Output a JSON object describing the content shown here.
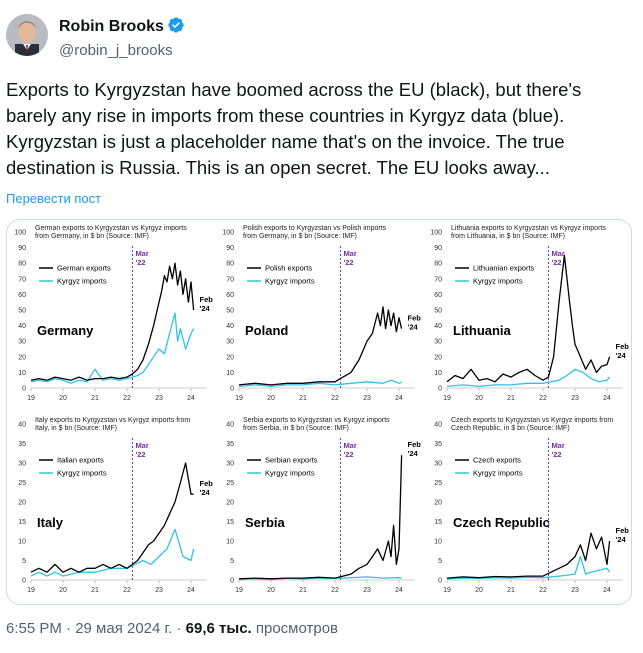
{
  "author": {
    "name": "Robin Brooks",
    "handle": "@robin_j_brooks",
    "verified": true
  },
  "tweet": {
    "text": "Exports to Kyrgyzstan have boomed across the EU (black), but there's barely any rise in imports from these countries in Kyrgyz data (blue). Kyrgyzstan is just a placeholder name that's on the invoice. The true destination is Russia. This is an open secret. The EU looks away...",
    "translate_label": "Перевести пост"
  },
  "footer": {
    "time": "6:55 PM · 29 мая 2024 г. · ",
    "views_count": "69,6 тыс.",
    "views_label": " просмотров"
  },
  "colors": {
    "exports": "#000000",
    "imports": "#2ec4e6",
    "marker": "#7030a0",
    "link": "#1d9bf0"
  },
  "chart_data": [
    {
      "type": "line",
      "title": "German exports to Kyrgyzstan vs Kyrgyz imports from Germany, in $ bn (Source: IMF)",
      "label": "Germany",
      "ylim": [
        0,
        100
      ],
      "yticks": [
        0,
        10,
        20,
        30,
        40,
        50,
        60,
        70,
        80,
        90,
        100
      ],
      "xticks": [
        "19",
        "20",
        "21",
        "22",
        "23",
        "24"
      ],
      "xlim": [
        2019,
        2024.5
      ],
      "marker": {
        "x": 2022.17,
        "label": [
          "Mar",
          "'22"
        ]
      },
      "end_label": [
        "Feb",
        "'24"
      ],
      "series": [
        {
          "name": "German exports",
          "color": "#000000",
          "x": [
            2019,
            2019.25,
            2019.5,
            2019.75,
            2020,
            2020.25,
            2020.5,
            2020.75,
            2021,
            2021.25,
            2021.5,
            2021.75,
            2022,
            2022.17,
            2022.33,
            2022.5,
            2022.67,
            2022.83,
            2023,
            2023.08,
            2023.17,
            2023.25,
            2023.33,
            2023.42,
            2023.5,
            2023.58,
            2023.67,
            2023.75,
            2023.83,
            2023.92,
            2024,
            2024.08
          ],
          "y": [
            5,
            6,
            5,
            7,
            6,
            5,
            7,
            5,
            6,
            6,
            7,
            6,
            7,
            9,
            12,
            18,
            28,
            40,
            55,
            62,
            72,
            68,
            78,
            70,
            80,
            66,
            75,
            60,
            70,
            55,
            68,
            50
          ]
        },
        {
          "name": "Kyrgyz imports",
          "color": "#2ec4e6",
          "x": [
            2019,
            2019.25,
            2019.5,
            2019.75,
            2020,
            2020.25,
            2020.5,
            2020.75,
            2021,
            2021.25,
            2021.5,
            2021.75,
            2022,
            2022.17,
            2022.33,
            2022.5,
            2022.67,
            2022.83,
            2023,
            2023.17,
            2023.33,
            2023.5,
            2023.58,
            2023.67,
            2023.83,
            2024,
            2024.08
          ],
          "y": [
            4,
            5,
            4,
            6,
            5,
            3,
            5,
            4,
            12,
            5,
            6,
            5,
            6,
            7,
            8,
            10,
            15,
            20,
            25,
            22,
            35,
            48,
            30,
            38,
            25,
            35,
            38
          ]
        }
      ]
    },
    {
      "type": "line",
      "title": "Polish exports to Kyrgyzstan vs Polish imports from Germany, in $ bn (Source: IMF)",
      "label": "Poland",
      "ylim": [
        0,
        100
      ],
      "yticks": [
        0,
        10,
        20,
        30,
        40,
        50,
        60,
        70,
        80,
        90,
        100
      ],
      "xticks": [
        "19",
        "20",
        "21",
        "22",
        "23",
        "24"
      ],
      "xlim": [
        2019,
        2024.5
      ],
      "marker": {
        "x": 2022.17,
        "label": [
          "Mar",
          "'22"
        ]
      },
      "end_label": [
        "Feb",
        "'24"
      ],
      "series": [
        {
          "name": "Polish exports",
          "color": "#000000",
          "x": [
            2019,
            2019.5,
            2020,
            2020.5,
            2021,
            2021.5,
            2022,
            2022.17,
            2022.5,
            2022.75,
            2023,
            2023.17,
            2023.33,
            2023.42,
            2023.5,
            2023.58,
            2023.67,
            2023.75,
            2023.83,
            2023.92,
            2024,
            2024.08
          ],
          "y": [
            2,
            3,
            2,
            3,
            3,
            4,
            4,
            6,
            10,
            18,
            30,
            35,
            48,
            40,
            52,
            38,
            50,
            40,
            48,
            36,
            45,
            38
          ]
        },
        {
          "name": "Kyrgyz imports",
          "color": "#2ec4e6",
          "x": [
            2019,
            2019.5,
            2020,
            2020.5,
            2021,
            2021.5,
            2022,
            2022.5,
            2023,
            2023.5,
            2023.75,
            2024,
            2024.08
          ],
          "y": [
            1,
            2,
            1,
            2,
            2,
            3,
            2,
            3,
            4,
            3,
            5,
            3,
            4
          ]
        }
      ]
    },
    {
      "type": "line",
      "title": "Lithuania exports to Kyrgyzstan vs Kyrgyz imports from Lithuania, in $ bn (Source: IMF)",
      "label": "Lithuania",
      "ylim": [
        0,
        100
      ],
      "yticks": [
        0,
        10,
        20,
        30,
        40,
        50,
        60,
        70,
        80,
        90,
        100
      ],
      "xticks": [
        "19",
        "20",
        "21",
        "22",
        "23",
        "24"
      ],
      "xlim": [
        2019,
        2024.5
      ],
      "marker": {
        "x": 2022.17,
        "label": [
          "Mar",
          "'22"
        ]
      },
      "end_label": [
        "Feb",
        "'24"
      ],
      "series": [
        {
          "name": "Lithuanian exports",
          "color": "#000000",
          "x": [
            2019,
            2019.25,
            2019.5,
            2019.75,
            2020,
            2020.25,
            2020.5,
            2020.75,
            2021,
            2021.25,
            2021.5,
            2021.75,
            2022,
            2022.17,
            2022.33,
            2022.5,
            2022.67,
            2022.75,
            2022.83,
            2022.92,
            2023,
            2023.17,
            2023.33,
            2023.5,
            2023.67,
            2023.83,
            2024,
            2024.08
          ],
          "y": [
            4,
            8,
            6,
            12,
            5,
            6,
            4,
            9,
            7,
            10,
            12,
            8,
            5,
            7,
            20,
            55,
            85,
            70,
            55,
            40,
            28,
            20,
            12,
            18,
            10,
            14,
            15,
            20
          ]
        },
        {
          "name": "Kyrgyz imports",
          "color": "#2ec4e6",
          "x": [
            2019,
            2019.5,
            2020,
            2020.5,
            2021,
            2021.5,
            2022,
            2022.5,
            2022.75,
            2023,
            2023.25,
            2023.5,
            2023.75,
            2024,
            2024.08
          ],
          "y": [
            1,
            2,
            1,
            2,
            2,
            3,
            3,
            5,
            8,
            12,
            10,
            6,
            4,
            5,
            7
          ]
        }
      ]
    },
    {
      "type": "line",
      "title": "Italy exports to Kyrgyzstan vs Kyrgyz imports from Italy, in $ bn (Source: IMF)",
      "label": "Italy",
      "ylim": [
        0,
        40
      ],
      "yticks": [
        0,
        5,
        10,
        15,
        20,
        25,
        30,
        35,
        40
      ],
      "xticks": [
        "19",
        "20",
        "21",
        "22",
        "23",
        "24"
      ],
      "xlim": [
        2019,
        2024.5
      ],
      "marker": {
        "x": 2022.17,
        "label": [
          "Mar",
          "'22"
        ]
      },
      "end_label": [
        "Feb",
        "'24"
      ],
      "series": [
        {
          "name": "Italian exports",
          "color": "#000000",
          "x": [
            2019,
            2019.25,
            2019.5,
            2019.75,
            2020,
            2020.25,
            2020.5,
            2020.75,
            2021,
            2021.25,
            2021.5,
            2021.75,
            2022,
            2022.17,
            2022.33,
            2022.5,
            2022.67,
            2022.83,
            2023,
            2023.17,
            2023.33,
            2023.5,
            2023.67,
            2023.83,
            2024,
            2024.08
          ],
          "y": [
            2,
            3,
            2,
            4,
            2,
            3,
            2,
            3,
            3,
            4,
            3,
            4,
            3,
            4,
            5,
            7,
            9,
            10,
            12,
            14,
            17,
            20,
            25,
            30,
            22,
            22
          ]
        },
        {
          "name": "Kyrgyz imports",
          "color": "#2ec4e6",
          "x": [
            2019,
            2019.25,
            2019.5,
            2019.75,
            2020,
            2020.5,
            2021,
            2021.5,
            2022,
            2022.25,
            2022.5,
            2022.75,
            2023,
            2023.25,
            2023.5,
            2023.75,
            2024,
            2024.08
          ],
          "y": [
            1,
            2,
            1,
            2,
            1,
            2,
            2,
            3,
            3,
            4,
            5,
            4,
            6,
            8,
            13,
            6,
            5,
            8
          ]
        }
      ]
    },
    {
      "type": "line",
      "title": "Serbia exports to Kyrgyzstan vs Kyrgyz imports from Serbia, in $ bn (Source: IMF)",
      "label": "Serbia",
      "ylim": [
        0,
        40
      ],
      "yticks": [
        0,
        5,
        10,
        15,
        20,
        25,
        30,
        35,
        40
      ],
      "xticks": [
        "19",
        "20",
        "21",
        "22",
        "23",
        "24"
      ],
      "xlim": [
        2019,
        2024.5
      ],
      "marker": {
        "x": 2022.17,
        "label": [
          "Mar",
          "'22"
        ]
      },
      "end_label": [
        "Feb",
        "'24"
      ],
      "series": [
        {
          "name": "Serbian exports",
          "color": "#000000",
          "x": [
            2019,
            2019.5,
            2020,
            2020.5,
            2021,
            2021.5,
            2022,
            2022.25,
            2022.5,
            2022.75,
            2023,
            2023.17,
            2023.33,
            2023.5,
            2023.67,
            2023.75,
            2023.83,
            2023.92,
            2024,
            2024.08
          ],
          "y": [
            0.3,
            0.5,
            0.3,
            0.5,
            0.5,
            0.7,
            0.5,
            1,
            1.5,
            3,
            4,
            6,
            8,
            5,
            10,
            6,
            14,
            4,
            8,
            32
          ]
        },
        {
          "name": "Kyrgyz imports",
          "color": "#2ec4e6",
          "x": [
            2019,
            2019.5,
            2020,
            2020.5,
            2021,
            2021.5,
            2022,
            2022.5,
            2023,
            2023.5,
            2024,
            2024.08
          ],
          "y": [
            0.2,
            0.3,
            0.2,
            0.4,
            0.3,
            0.5,
            0.4,
            0.6,
            0.8,
            0.5,
            0.6,
            0.5
          ]
        }
      ]
    },
    {
      "type": "line",
      "title": "Czech exports to Kyrgyzstan vs Kyrgyz imports from Czech Republic, in $ bn (Source: IMF)",
      "label": "Czech Republic",
      "ylim": [
        0,
        40
      ],
      "yticks": [
        0,
        5,
        10,
        15,
        20,
        25,
        30,
        35,
        40
      ],
      "xticks": [
        "19",
        "20",
        "21",
        "22",
        "23",
        "24"
      ],
      "xlim": [
        2019,
        2024.5
      ],
      "marker": {
        "x": 2022.17,
        "label": [
          "Mar",
          "'22"
        ]
      },
      "end_label": [
        "Feb",
        "'24"
      ],
      "series": [
        {
          "name": "Czech exports",
          "color": "#000000",
          "x": [
            2019,
            2019.5,
            2020,
            2020.5,
            2021,
            2021.5,
            2022,
            2022.25,
            2022.5,
            2022.75,
            2023,
            2023.17,
            2023.33,
            2023.5,
            2023.67,
            2023.83,
            2024,
            2024.08
          ],
          "y": [
            0.5,
            0.8,
            0.6,
            0.9,
            0.8,
            1,
            1,
            2,
            3,
            4,
            6,
            9,
            5,
            12,
            8,
            11,
            4,
            10
          ]
        },
        {
          "name": "Kyrgyz imports",
          "color": "#2ec4e6",
          "x": [
            2019,
            2019.5,
            2020,
            2020.5,
            2021,
            2021.5,
            2022,
            2022.5,
            2023,
            2023.17,
            2023.33,
            2023.5,
            2023.75,
            2024,
            2024.08
          ],
          "y": [
            0.3,
            0.5,
            0.4,
            0.6,
            0.5,
            0.7,
            0.6,
            1,
            1.5,
            6,
            1.5,
            2,
            2.5,
            3,
            2
          ]
        }
      ]
    }
  ]
}
